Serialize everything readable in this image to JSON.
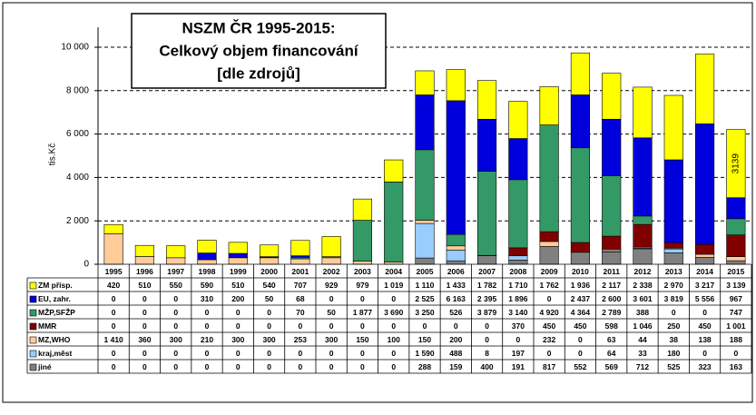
{
  "chart_data": {
    "type": "bar",
    "stacked": true,
    "title": [
      "NSZM ČR 1995-2015:",
      "Celkový objem financování",
      "[dle zdrojů]"
    ],
    "y_label": "tis.Kč",
    "categories": [
      "1995",
      "1996",
      "1997",
      "1998",
      "1999",
      "2000",
      "2001",
      "2002",
      "2003",
      "2004",
      "2005",
      "2006",
      "2007",
      "2008",
      "2009",
      "2010",
      "2011",
      "2012",
      "2013",
      "2014",
      "2015"
    ],
    "ylim": [
      0,
      10000
    ],
    "yticks": [
      0,
      {
        "value": 2000,
        "label": "2 000"
      },
      {
        "value": 4000,
        "label": "4 000"
      },
      {
        "value": 6000,
        "label": "6 000"
      },
      {
        "value": 8000,
        "label": "8 000"
      },
      {
        "value": 10000,
        "label": "10 000"
      }
    ],
    "grid": true,
    "series": [
      {
        "name": "ZM přísp.",
        "color": "#ffff00",
        "values": [
          420,
          510,
          550,
          590,
          510,
          540,
          707,
          929,
          979,
          1019,
          1110,
          1433,
          1782,
          1710,
          1762,
          1936,
          2117,
          2338,
          2970,
          3217,
          3139
        ],
        "value_labels": [
          "420",
          "510",
          "550",
          "590",
          "510",
          "540",
          "707",
          "929",
          "979",
          "1 019",
          "1 110",
          "1 433",
          "1 782",
          "1 710",
          "1 762",
          "1 936",
          "2 117",
          "2 338",
          "2 970",
          "3 217",
          "3 139"
        ]
      },
      {
        "name": "EU, zahr.",
        "color": "#0000dd",
        "values": [
          0,
          0,
          0,
          310,
          200,
          50,
          68,
          0,
          0,
          0,
          2525,
          6163,
          2395,
          1896,
          0,
          2437,
          2600,
          3601,
          3819,
          5556,
          967
        ],
        "value_labels": [
          "0",
          "0",
          "0",
          "310",
          "200",
          "50",
          "68",
          "0",
          "0",
          "0",
          "2 525",
          "6 163",
          "2 395",
          "1 896",
          "0",
          "2 437",
          "2 600",
          "3 601",
          "3 819",
          "5 556",
          "967"
        ]
      },
      {
        "name": "MŽP,SFŽP",
        "color": "#339966",
        "values": [
          0,
          0,
          0,
          0,
          0,
          0,
          70,
          50,
          1877,
          3690,
          3250,
          526,
          3879,
          3140,
          4920,
          4364,
          2789,
          388,
          0,
          0,
          747
        ],
        "value_labels": [
          "0",
          "0",
          "0",
          "0",
          "0",
          "0",
          "70",
          "50",
          "1 877",
          "3 690",
          "3 250",
          "526",
          "3 879",
          "3 140",
          "4 920",
          "4 364",
          "2 789",
          "388",
          "0",
          "0",
          "747"
        ]
      },
      {
        "name": "MMR",
        "color": "#800000",
        "values": [
          0,
          0,
          0,
          0,
          0,
          0,
          0,
          0,
          0,
          0,
          0,
          0,
          0,
          370,
          450,
          450,
          598,
          1046,
          250,
          450,
          1001
        ],
        "value_labels": [
          "0",
          "0",
          "0",
          "0",
          "0",
          "0",
          "0",
          "0",
          "0",
          "0",
          "0",
          "0",
          "0",
          "370",
          "450",
          "450",
          "598",
          "1 046",
          "250",
          "450",
          "1 001"
        ]
      },
      {
        "name": "MZ,WHO",
        "color": "#ffcc99",
        "values": [
          1410,
          360,
          300,
          210,
          300,
          300,
          253,
          300,
          150,
          100,
          150,
          200,
          0,
          0,
          232,
          0,
          63,
          44,
          38,
          138,
          188
        ],
        "value_labels": [
          "1 410",
          "360",
          "300",
          "210",
          "300",
          "300",
          "253",
          "300",
          "150",
          "100",
          "150",
          "200",
          "0",
          "0",
          "232",
          "0",
          "63",
          "44",
          "38",
          "138",
          "188"
        ]
      },
      {
        "name": "kraj,měst",
        "color": "#99ccff",
        "values": [
          0,
          0,
          0,
          0,
          0,
          0,
          0,
          0,
          0,
          0,
          1590,
          488,
          8,
          197,
          0,
          0,
          64,
          33,
          180,
          0,
          0
        ],
        "value_labels": [
          "0",
          "0",
          "0",
          "0",
          "0",
          "0",
          "0",
          "0",
          "0",
          "0",
          "1 590",
          "488",
          "8",
          "197",
          "0",
          "0",
          "64",
          "33",
          "180",
          "0",
          "0"
        ]
      },
      {
        "name": "jiné",
        "color": "#808080",
        "values": [
          0,
          0,
          0,
          0,
          0,
          0,
          0,
          0,
          0,
          0,
          288,
          159,
          400,
          191,
          817,
          552,
          569,
          712,
          525,
          323,
          163
        ],
        "value_labels": [
          "0",
          "0",
          "0",
          "0",
          "0",
          "0",
          "0",
          "0",
          "0",
          "0",
          "288",
          "159",
          "400",
          "191",
          "817",
          "552",
          "569",
          "712",
          "525",
          "323",
          "163"
        ]
      }
    ]
  }
}
